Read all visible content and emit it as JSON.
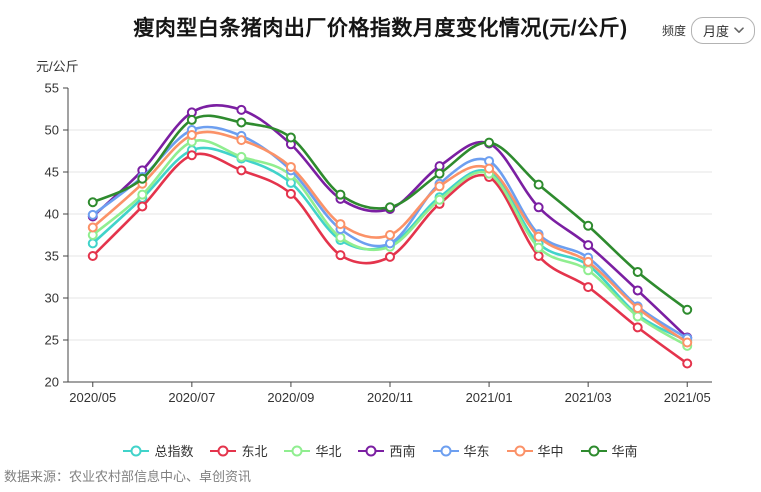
{
  "header": {
    "freq_label": "频度",
    "freq_value": "月度"
  },
  "chart_data": {
    "type": "line",
    "title": "瘦肉型白条猪肉出厂价格指数月度变化情况(元/公斤)",
    "ylabel": "元/公斤",
    "xlabel": "",
    "smooth": true,
    "grid": true,
    "legend_position": "bottom",
    "ylim": [
      20,
      55
    ],
    "y_ticks": [
      20,
      25,
      30,
      35,
      40,
      45,
      50,
      55
    ],
    "x": [
      "2020/05",
      "2020/06",
      "2020/07",
      "2020/08",
      "2020/09",
      "2020/10",
      "2020/11",
      "2020/12",
      "2021/01",
      "2021/02",
      "2021/03",
      "2021/04",
      "2021/05"
    ],
    "x_tick_labels": [
      "2020/05",
      "2020/07",
      "2020/09",
      "2020/11",
      "2021/01",
      "2021/03",
      "2021/05"
    ],
    "series": [
      {
        "name": "总指数",
        "id": "total-index",
        "color": "#41d3ca",
        "values": [
          36.5,
          41.9,
          47.6,
          46.6,
          43.7,
          36.9,
          36.3,
          42.0,
          45.0,
          36.5,
          33.9,
          28.0,
          24.9
        ]
      },
      {
        "name": "东北",
        "id": "northeast",
        "color": "#e4344c",
        "values": [
          35.0,
          40.9,
          47.0,
          45.2,
          42.4,
          35.1,
          34.9,
          41.2,
          44.4,
          35.0,
          31.3,
          26.5,
          22.2
        ]
      },
      {
        "name": "华北",
        "id": "north-china",
        "color": "#90ee90",
        "values": [
          37.5,
          42.3,
          48.6,
          46.8,
          44.6,
          37.2,
          36.1,
          41.7,
          44.8,
          36.0,
          33.3,
          27.8,
          24.3
        ]
      },
      {
        "name": "西南",
        "id": "southwest",
        "color": "#7b1fa2",
        "values": [
          39.7,
          45.2,
          52.1,
          52.4,
          48.3,
          41.8,
          40.6,
          45.7,
          48.4,
          40.8,
          36.3,
          30.9,
          25.3
        ]
      },
      {
        "name": "华东",
        "id": "east-china",
        "color": "#6d9ff0",
        "values": [
          39.9,
          44.4,
          50.0,
          49.3,
          45.2,
          38.2,
          36.5,
          43.6,
          46.3,
          37.6,
          34.8,
          29.0,
          25.2
        ]
      },
      {
        "name": "华中",
        "id": "central-china",
        "color": "#fb9268",
        "values": [
          38.4,
          43.6,
          49.4,
          48.8,
          45.6,
          38.8,
          37.5,
          43.3,
          45.4,
          37.3,
          34.3,
          28.8,
          24.7
        ]
      },
      {
        "name": "华南",
        "id": "south-china",
        "color": "#2e8b2e",
        "values": [
          41.4,
          44.2,
          51.2,
          50.9,
          49.1,
          42.3,
          40.8,
          44.8,
          48.5,
          43.5,
          38.6,
          33.1,
          28.6
        ]
      }
    ],
    "axis_color": "#444444",
    "grid_color": "#e5e5e5"
  },
  "footer": {
    "source": "数据来源：农业农村部信息中心、卓创资讯"
  }
}
